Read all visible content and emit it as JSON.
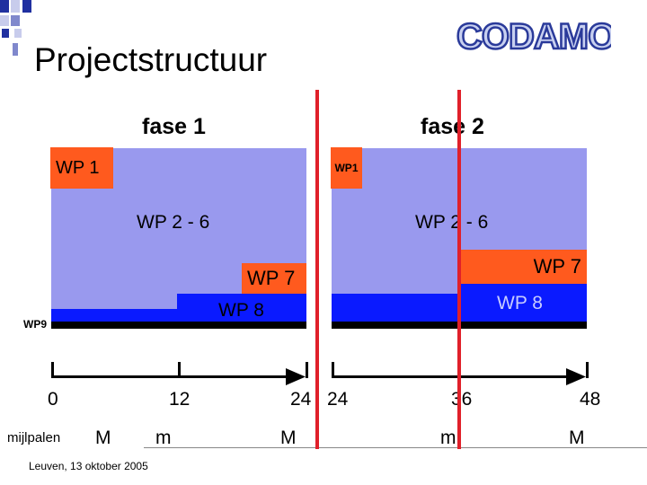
{
  "slide": {
    "title": "Projectstructuur",
    "footer": "Leuven, 13 oktober 2005",
    "logo_text": "CODAMOS"
  },
  "phases": [
    {
      "label": "fase 1",
      "wp1": "WP 1",
      "wp26": "WP 2 - 6",
      "wp7": "WP 7",
      "wp8": "WP 8",
      "wp9": "WP9"
    },
    {
      "label": "fase 2",
      "wp1": "WP1",
      "wp26": "WP 2 - 6",
      "wp7": "WP 7",
      "wp8": "WP 8"
    }
  ],
  "timeline": {
    "ticks": [
      "0",
      "12",
      "24",
      "24",
      "36",
      "48"
    ],
    "milestone_label": "mijlpalen",
    "milestones": [
      "M",
      "m",
      "M",
      "m",
      "M"
    ]
  },
  "colors": {
    "panel": "#9999ee",
    "band": "#0a1aff",
    "work_package": "#ff5a1e",
    "divider": "#e0202a"
  }
}
